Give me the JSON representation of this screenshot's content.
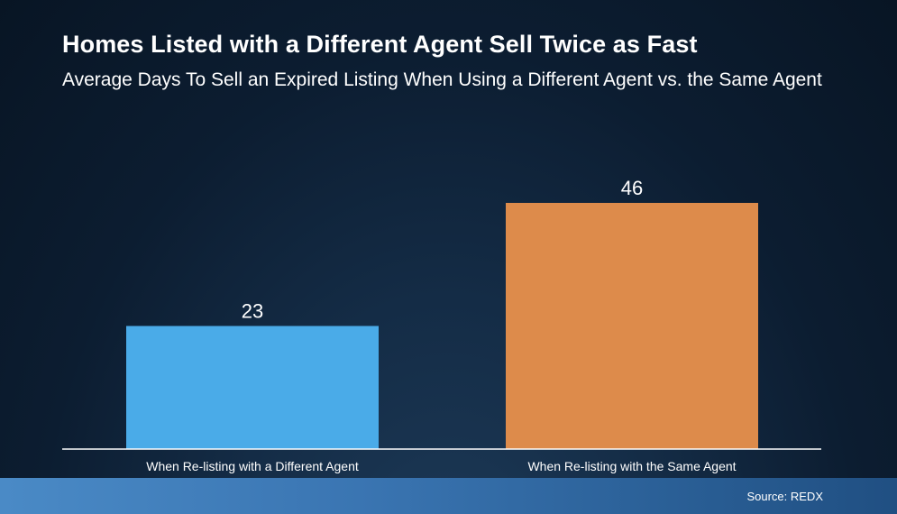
{
  "title": "Homes Listed with a Different Agent Sell Twice as Fast",
  "subtitle": "Average Days To Sell an Expired Listing When Using a Different Agent vs. the Same Agent",
  "source": "Source: REDX",
  "colors": {
    "bar_different_agent": "#4aabe8",
    "bar_same_agent": "#dd8b4b",
    "baseline": "#ffffff"
  },
  "chart_data": {
    "type": "bar",
    "title": "Homes Listed with a Different Agent Sell Twice as Fast",
    "subtitle": "Average Days To Sell an Expired Listing When Using a Different Agent vs. the Same Agent",
    "categories": [
      "When Re-listing with a Different Agent",
      "When Re-listing with the Same Agent"
    ],
    "values": [
      23,
      46
    ],
    "data_labels": [
      "23",
      "46"
    ],
    "xlabel": "",
    "ylabel": "",
    "ylim": [
      0,
      46
    ],
    "grid": false,
    "legend": "none"
  }
}
